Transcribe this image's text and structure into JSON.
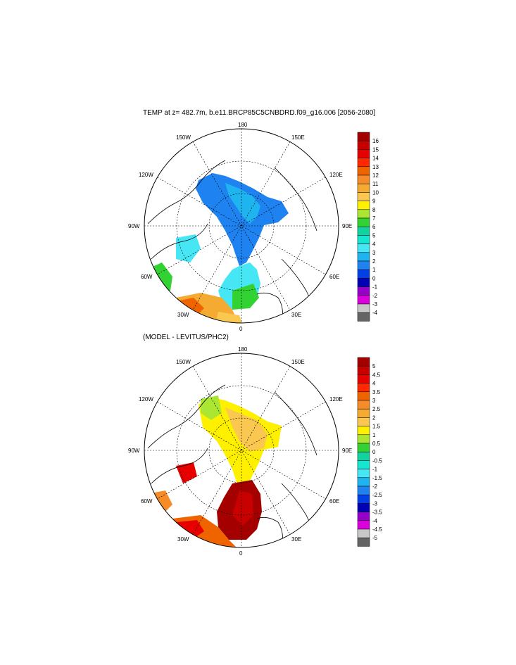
{
  "panels": [
    {
      "title": "TEMP at z= 482.7m, b.e11.BRCP85C5CNBDRD.f09_g16.006 [2056-2080]",
      "lon_labels": {
        "top": "180",
        "bottom": "0",
        "left": "90W",
        "right": "90E",
        "ul1": "150W",
        "ul2": "120W",
        "ur1": "150E",
        "ur2": "120E",
        "ll1": "60W",
        "ll2": "30W",
        "lr1": "60E",
        "lr2": "30E"
      },
      "colorbar": {
        "labels": [
          "16",
          "15",
          "14",
          "13",
          "12",
          "11",
          "10",
          "9",
          "8",
          "7",
          "6",
          "5",
          "4",
          "3",
          "2",
          "1",
          "0",
          "-1",
          "-2",
          "-3",
          "-4"
        ],
        "colors": [
          "#a50000",
          "#c80000",
          "#e60000",
          "#ff2800",
          "#f06400",
          "#f58c28",
          "#f5aa32",
          "#fac850",
          "#fff000",
          "#aae632",
          "#32d232",
          "#14d2a0",
          "#14e6d2",
          "#46e6f5",
          "#1eb4f0",
          "#1e82f0",
          "#0040e6",
          "#0000b4",
          "#9600c8",
          "#dc00dc",
          "#c8c8c8",
          "#646464"
        ]
      }
    },
    {
      "title": "(MODEL - LEVITUS/PHC2)",
      "lon_labels": {
        "top": "180",
        "bottom": "0",
        "left": "90W",
        "right": "90E",
        "ul1": "150W",
        "ul2": "120W",
        "ur1": "150E",
        "ur2": "120E",
        "ll1": "60W",
        "ll2": "30W",
        "lr1": "60E",
        "lr2": "30E"
      },
      "colorbar": {
        "labels": [
          "5",
          "4.5",
          "4",
          "3.5",
          "3",
          "2.5",
          "2",
          "1.5",
          "1",
          "0.5",
          "0",
          "-0.5",
          "-1",
          "-1.5",
          "-2",
          "-2.5",
          "-3",
          "-3.5",
          "-4",
          "-4.5",
          "-5"
        ],
        "colors": [
          "#a50000",
          "#c80000",
          "#e60000",
          "#ff2800",
          "#f06400",
          "#f58c28",
          "#f5aa32",
          "#fac850",
          "#fff000",
          "#aae632",
          "#32d232",
          "#14d2a0",
          "#14e6d2",
          "#46e6f5",
          "#1eb4f0",
          "#1e82f0",
          "#0040e6",
          "#0000b4",
          "#9600c8",
          "#dc00dc",
          "#c8c8c8",
          "#646464"
        ]
      }
    }
  ]
}
